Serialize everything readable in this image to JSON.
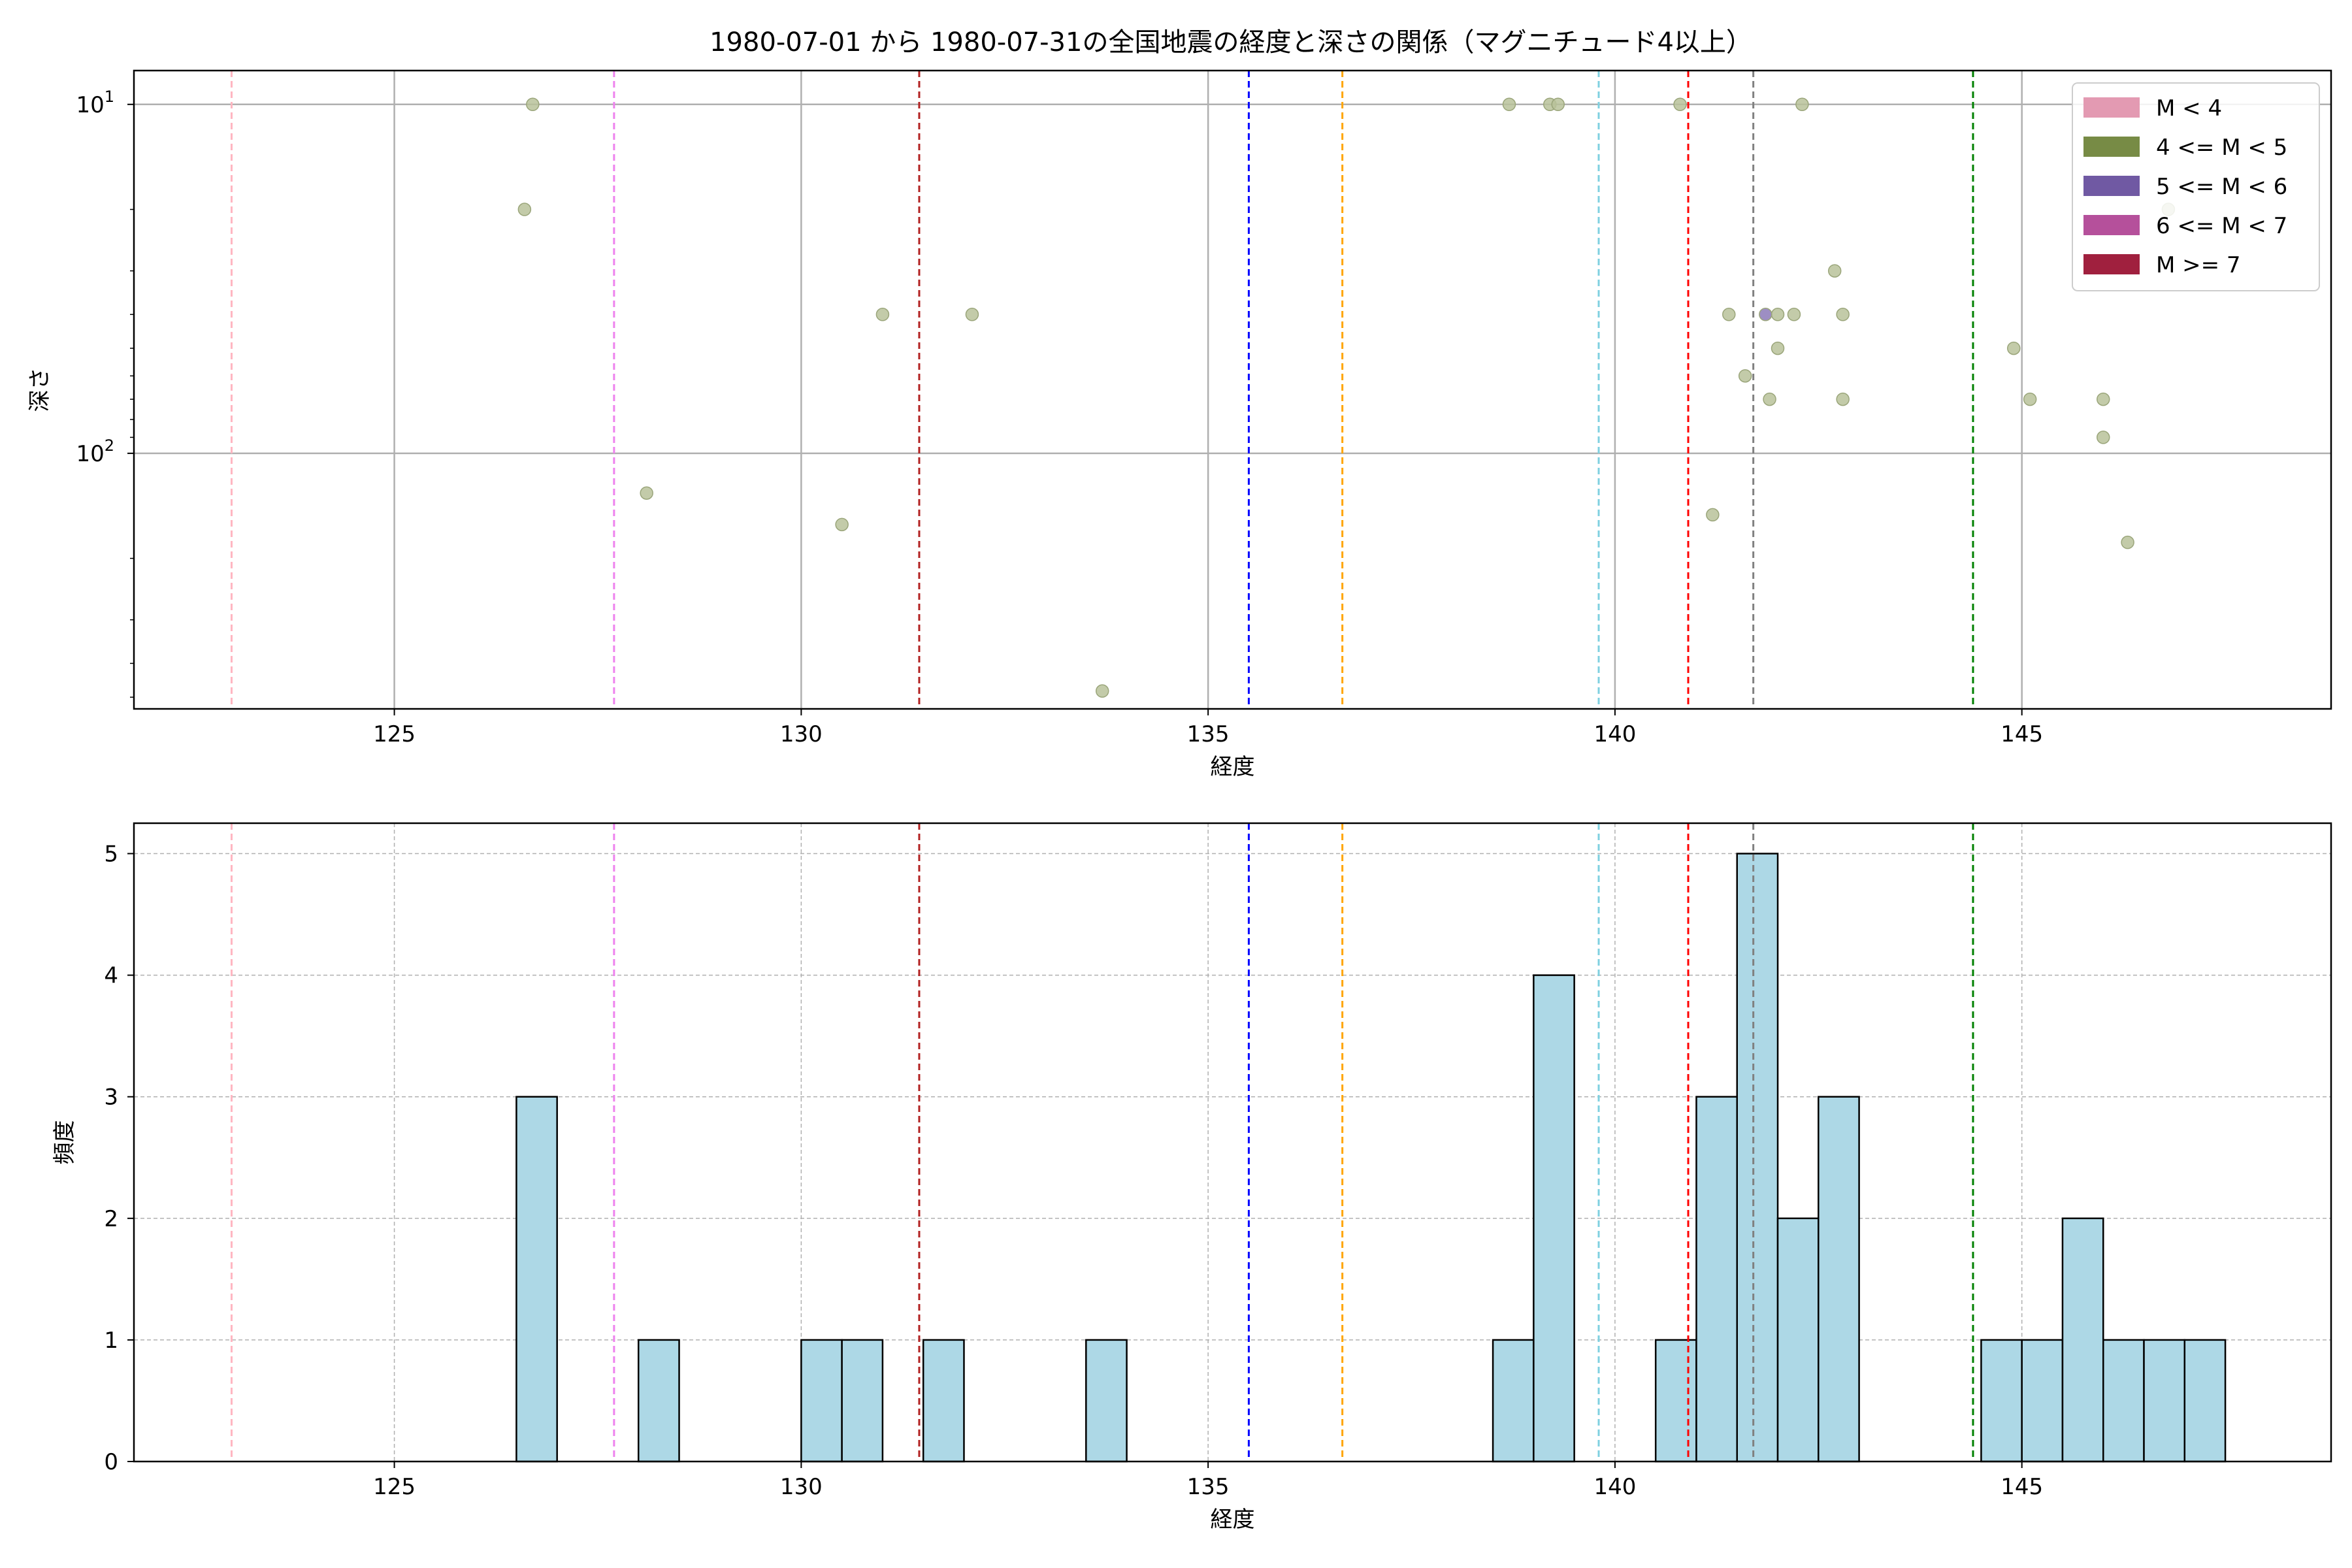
{
  "title": "1980-07-01 から 1980-07-31の全国地震の経度と深さの関係（マグニチュード4以上）",
  "chart_data": [
    {
      "type": "scatter",
      "xlabel": "経度",
      "ylabel": "深さ",
      "xlim": [
        121.8,
        148.8
      ],
      "ylim": [
        540,
        8
      ],
      "y_scale": "log",
      "y_inverted": true,
      "grid": true,
      "x_ticks": [
        125,
        130,
        135,
        140,
        145
      ],
      "y_ticks": [
        10,
        100
      ],
      "y_tick_labels": [
        {
          "base": "10",
          "exp": "1"
        },
        {
          "base": "10",
          "exp": "2"
        }
      ],
      "legend_position": "upper right",
      "legend": [
        {
          "label": "M < 4",
          "color": "#e39ab2"
        },
        {
          "label": "4 <= M < 5",
          "color": "#778b45"
        },
        {
          "label": "5 <= M < 6",
          "color": "#7059a3"
        },
        {
          "label": "6 <= M < 7",
          "color": "#b5509b"
        },
        {
          "label": "M >= 7",
          "color": "#a0203e"
        }
      ],
      "points_color_4_to_5": "#b8c29a",
      "points_color_5_to_6": "#8c7ab8",
      "points": [
        {
          "x": 126.7,
          "y": 10,
          "m": "4-5"
        },
        {
          "x": 126.6,
          "y": 20,
          "m": "4-5"
        },
        {
          "x": 128.1,
          "y": 130,
          "m": "4-5"
        },
        {
          "x": 130.5,
          "y": 160,
          "m": "4-5"
        },
        {
          "x": 131.0,
          "y": 40,
          "m": "4-5"
        },
        {
          "x": 132.1,
          "y": 40,
          "m": "4-5"
        },
        {
          "x": 133.7,
          "y": 480,
          "m": "4-5"
        },
        {
          "x": 138.7,
          "y": 10,
          "m": "4-5"
        },
        {
          "x": 139.2,
          "y": 10,
          "m": "4-5"
        },
        {
          "x": 139.3,
          "y": 10,
          "m": "4-5"
        },
        {
          "x": 140.8,
          "y": 10,
          "m": "4-5"
        },
        {
          "x": 141.2,
          "y": 150,
          "m": "4-5"
        },
        {
          "x": 141.4,
          "y": 40,
          "m": "4-5"
        },
        {
          "x": 141.6,
          "y": 60,
          "m": "4-5"
        },
        {
          "x": 141.9,
          "y": 70,
          "m": "4-5"
        },
        {
          "x": 142.0,
          "y": 40,
          "m": "4-5"
        },
        {
          "x": 142.0,
          "y": 50,
          "m": "4-5"
        },
        {
          "x": 142.2,
          "y": 40,
          "m": "4-5"
        },
        {
          "x": 142.3,
          "y": 10,
          "m": "4-5"
        },
        {
          "x": 142.7,
          "y": 30,
          "m": "4-5"
        },
        {
          "x": 142.8,
          "y": 40,
          "m": "4-5"
        },
        {
          "x": 142.8,
          "y": 70,
          "m": "4-5"
        },
        {
          "x": 144.9,
          "y": 50,
          "m": "4-5"
        },
        {
          "x": 145.1,
          "y": 70,
          "m": "4-5"
        },
        {
          "x": 146.0,
          "y": 90,
          "m": "4-5"
        },
        {
          "x": 146.0,
          "y": 70,
          "m": "4-5"
        },
        {
          "x": 146.3,
          "y": 180,
          "m": "4-5"
        },
        {
          "x": 146.8,
          "y": 20,
          "m": "4-5"
        },
        {
          "x": 141.85,
          "y": 40,
          "m": "5-6"
        }
      ]
    },
    {
      "type": "bar",
      "subtype": "histogram",
      "xlabel": "経度",
      "ylabel": "頻度",
      "xlim": [
        121.8,
        148.8
      ],
      "ylim": [
        0,
        5.25
      ],
      "grid": "dashed",
      "bar_color": "#add8e6",
      "x_ticks": [
        125,
        130,
        135,
        140,
        145
      ],
      "y_ticks": [
        0,
        1,
        2,
        3,
        4,
        5
      ],
      "bins": [
        {
          "x0": 126.5,
          "x1": 127.0,
          "count": 3
        },
        {
          "x0": 128.0,
          "x1": 128.5,
          "count": 1
        },
        {
          "x0": 130.0,
          "x1": 130.5,
          "count": 1
        },
        {
          "x0": 130.5,
          "x1": 131.0,
          "count": 1
        },
        {
          "x0": 131.5,
          "x1": 132.0,
          "count": 1
        },
        {
          "x0": 133.5,
          "x1": 134.0,
          "count": 1
        },
        {
          "x0": 138.5,
          "x1": 139.0,
          "count": 1
        },
        {
          "x0": 139.0,
          "x1": 139.5,
          "count": 4
        },
        {
          "x0": 140.5,
          "x1": 141.0,
          "count": 1
        },
        {
          "x0": 141.0,
          "x1": 141.5,
          "count": 3
        },
        {
          "x0": 141.5,
          "x1": 142.0,
          "count": 5
        },
        {
          "x0": 142.0,
          "x1": 142.5,
          "count": 2
        },
        {
          "x0": 142.5,
          "x1": 143.0,
          "count": 3
        },
        {
          "x0": 144.5,
          "x1": 145.0,
          "count": 1
        },
        {
          "x0": 145.0,
          "x1": 145.5,
          "count": 1
        },
        {
          "x0": 145.5,
          "x1": 146.0,
          "count": 2
        },
        {
          "x0": 146.0,
          "x1": 146.5,
          "count": 1
        },
        {
          "x0": 146.5,
          "x1": 147.0,
          "count": 1
        },
        {
          "x0": 147.0,
          "x1": 147.5,
          "count": 1
        }
      ]
    }
  ],
  "vertical_lines": [
    {
      "x": 123.0,
      "color": "#ffb6c1"
    },
    {
      "x": 127.7,
      "color": "#ee82ee"
    },
    {
      "x": 131.45,
      "color": "#b22222"
    },
    {
      "x": 135.5,
      "color": "#0000ff"
    },
    {
      "x": 136.65,
      "color": "#ffa500"
    },
    {
      "x": 139.8,
      "color": "#7fd0e0"
    },
    {
      "x": 140.9,
      "color": "#ff0000"
    },
    {
      "x": 141.7,
      "color": "#808080"
    },
    {
      "x": 144.4,
      "color": "#008000"
    }
  ]
}
